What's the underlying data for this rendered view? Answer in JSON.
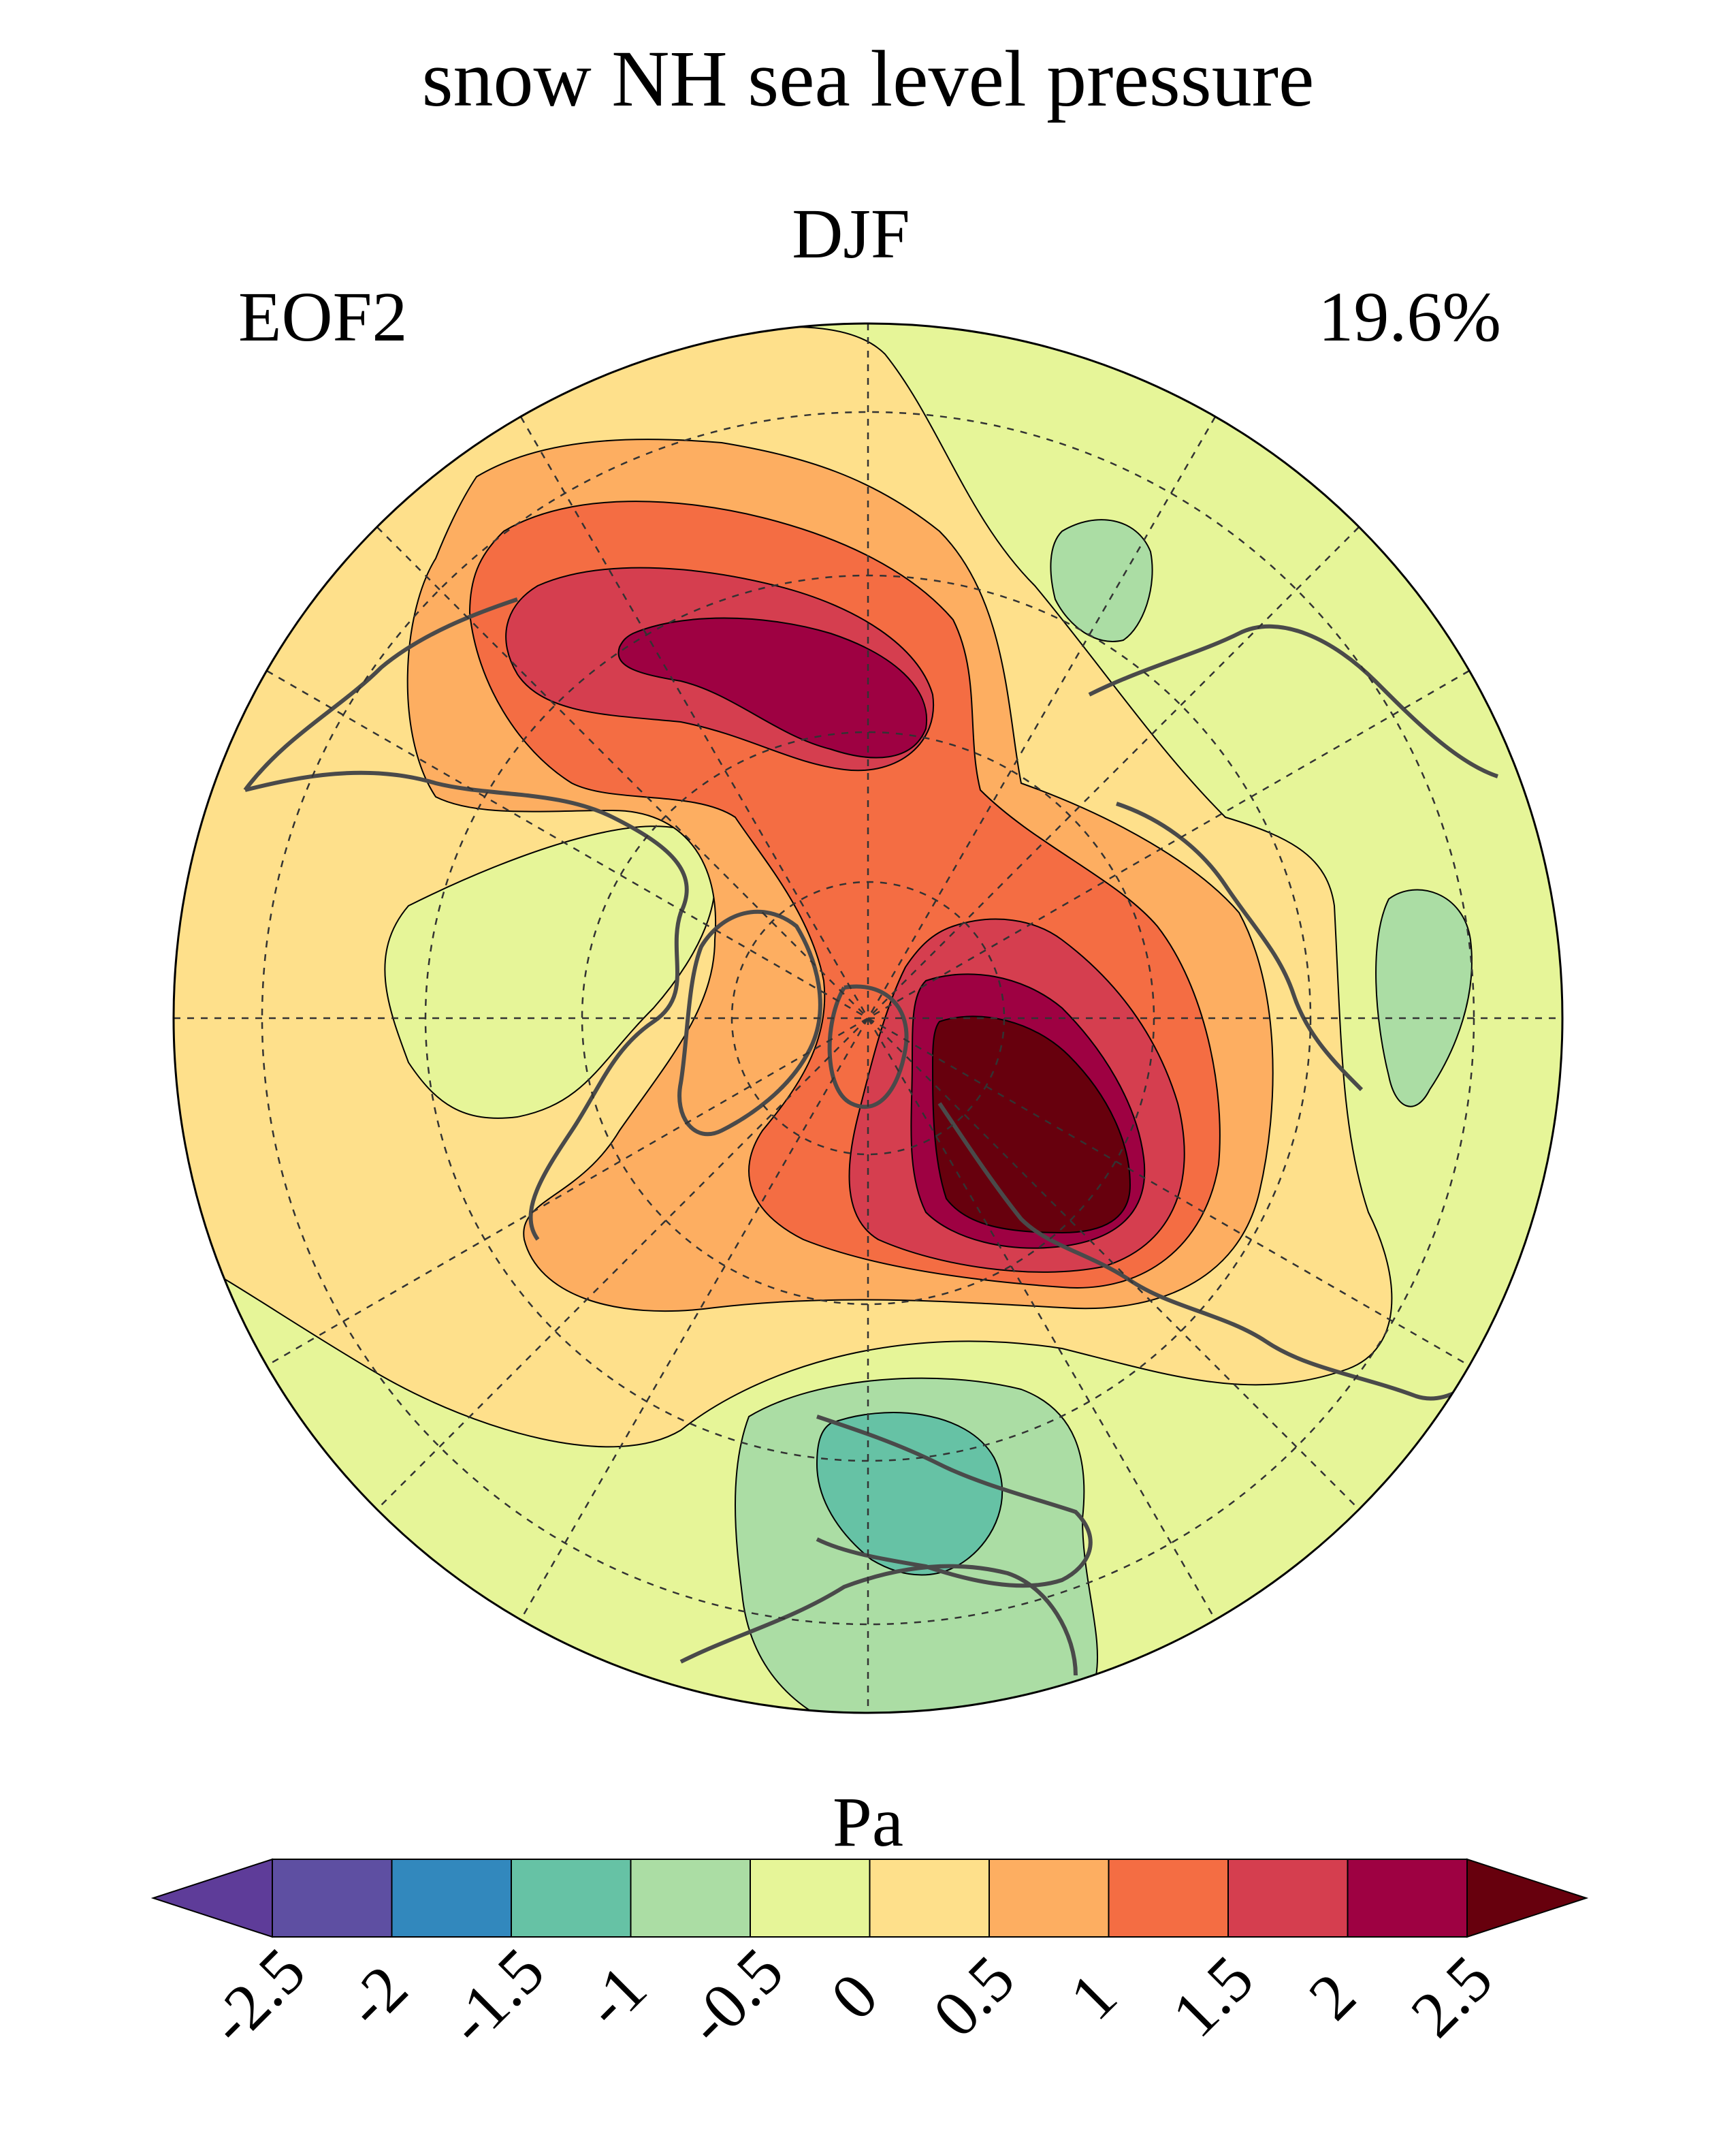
{
  "figure": {
    "title": "snow NH sea level pressure",
    "season": "DJF",
    "mode": "EOF2",
    "variance_explained": "19.6%"
  },
  "map": {
    "projection": "north-polar-stereographic",
    "graticule": "dashed",
    "coastline_color": "#4a4a4a"
  },
  "colorbar": {
    "unit": "Pa",
    "ticks": [
      "-2.5",
      "-2",
      "-1.5",
      "-1",
      "-0.5",
      "0",
      "0.5",
      "1",
      "1.5",
      "2",
      "2.5"
    ],
    "colors": [
      "#5e3c99",
      "#5e4fa2",
      "#3288bd",
      "#66c2a5",
      "#abdda4",
      "#e6f598",
      "#fee08b",
      "#fdae61",
      "#f46d43",
      "#d53e4f",
      "#9e0142",
      "#67000d"
    ],
    "extend": "both"
  }
}
